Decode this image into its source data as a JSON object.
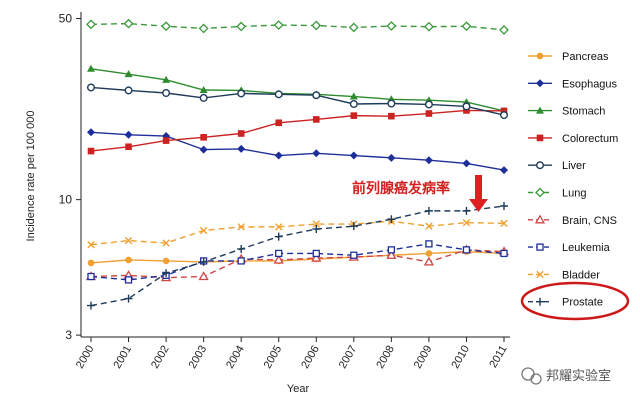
{
  "chart_data": {
    "type": "line",
    "ylabel": "Incidence rate per 100 000",
    "xlabel": "Year",
    "y_scale": "log",
    "ylim": [
      2.95,
      53
    ],
    "y_ticks": [
      {
        "value": 50,
        "label": "50"
      },
      {
        "value": 10,
        "label": "10"
      },
      {
        "value": 3,
        "label": "3"
      }
    ],
    "x": [
      "2000",
      "2001",
      "2002",
      "2003",
      "2004",
      "2005",
      "2006",
      "2007",
      "2008",
      "2009",
      "2010",
      "2011"
    ],
    "legend_position": "right",
    "series": [
      {
        "name": "Pancreas",
        "color": "#f0a030",
        "dash": "solid",
        "marker": "circle-filled",
        "values": [
          5.7,
          5.85,
          5.8,
          5.75,
          5.8,
          5.8,
          5.9,
          6.0,
          6.1,
          6.2,
          6.3,
          6.2
        ]
      },
      {
        "name": "Esophagus",
        "color": "#1f2f99",
        "dash": "solid",
        "marker": "diamond-filled",
        "values": [
          18.2,
          17.8,
          17.6,
          15.6,
          15.7,
          14.8,
          15.1,
          14.8,
          14.5,
          14.2,
          13.8,
          13.0
        ]
      },
      {
        "name": "Stomach",
        "color": "#2e8b2e",
        "dash": "solid",
        "marker": "triangle-filled",
        "values": [
          32.0,
          30.5,
          29.0,
          26.5,
          26.4,
          25.7,
          25.5,
          25.0,
          24.4,
          24.2,
          23.8,
          22.0
        ]
      },
      {
        "name": "Colorectum",
        "color": "#cc2222",
        "dash": "solid",
        "marker": "square-filled",
        "values": [
          15.4,
          16.0,
          16.9,
          17.4,
          18.0,
          19.8,
          20.4,
          21.1,
          21.0,
          21.5,
          22.1,
          22.0
        ]
      },
      {
        "name": "Liver",
        "color": "#1f3b5a",
        "dash": "solid",
        "marker": "circle-open",
        "values": [
          27.1,
          26.4,
          25.8,
          24.7,
          25.7,
          25.5,
          25.3,
          23.4,
          23.5,
          23.3,
          22.9,
          21.2
        ]
      },
      {
        "name": "Lung",
        "color": "#3a9a3a",
        "dash": "dash",
        "marker": "diamond-open",
        "values": [
          47.5,
          47.8,
          46.7,
          45.8,
          46.6,
          47.2,
          47.0,
          46.2,
          46.8,
          46.5,
          46.7,
          45.2
        ]
      },
      {
        "name": "Brain, CNS",
        "color": "#d04545",
        "dash": "dash",
        "marker": "triangle-open",
        "values": [
          5.05,
          5.1,
          5.0,
          5.05,
          5.9,
          5.85,
          5.95,
          6.0,
          6.1,
          5.75,
          6.4,
          6.3
        ]
      },
      {
        "name": "Leukemia",
        "color": "#1f2f99",
        "dash": "dash",
        "marker": "square-open",
        "values": [
          5.05,
          4.9,
          5.1,
          5.8,
          5.8,
          6.2,
          6.2,
          6.1,
          6.4,
          6.75,
          6.4,
          6.2
        ]
      },
      {
        "name": "Bladder",
        "color": "#f0a030",
        "dash": "dash",
        "marker": "x",
        "values": [
          6.7,
          6.95,
          6.8,
          7.6,
          7.85,
          7.85,
          8.05,
          8.05,
          8.25,
          7.9,
          8.15,
          8.1
        ]
      },
      {
        "name": "Prostate",
        "color": "#1f3b5a",
        "dash": "dash",
        "marker": "plus",
        "values": [
          3.9,
          4.15,
          5.2,
          5.75,
          6.45,
          7.2,
          7.7,
          7.9,
          8.4,
          9.05,
          9.05,
          9.45
        ]
      }
    ],
    "annotation": {
      "text": "前列腺癌发病率",
      "points_to": "Prostate"
    }
  },
  "watermark": {
    "text": "邦耀实验室"
  }
}
